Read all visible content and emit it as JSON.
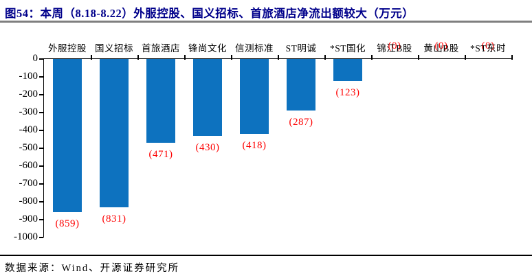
{
  "title": "图54：本周（8.18-8.22）外服控股、国义招标、首旅酒店净流出额较大（万元）",
  "source": "数据来源：Wind、开源证券研究所",
  "colors": {
    "title": "#00008b",
    "title_rule": "#7f7f7f",
    "bar": "#0d72bf",
    "value_label": "#fe0000",
    "axis": "#000000"
  },
  "chart_data": {
    "type": "bar",
    "title": "本周（8.18-8.22）外服控股、国义招标、首旅酒店净流出额较大（万元）",
    "categories": [
      "外服控股",
      "国义招标",
      "首旅酒店",
      "锋尚文化",
      "信测标准",
      "ST明诚",
      "*ST国化",
      "锦江B股",
      "黄山B股",
      "*ST东时"
    ],
    "values": [
      -859,
      -831,
      -471,
      -430,
      -418,
      -287,
      -123,
      0,
      0,
      0
    ],
    "data_labels": [
      "(859)",
      "(831)",
      "(471)",
      "(430)",
      "(418)",
      "(287)",
      "(123)",
      "(0)",
      "(0)",
      "(0)"
    ],
    "xlabel": "",
    "ylabel": "",
    "ylim": [
      -1000,
      0
    ],
    "yticks": [
      "0",
      "-100",
      "-200",
      "-300",
      "-400",
      "-500",
      "-600",
      "-700",
      "-800",
      "-900",
      "-1000"
    ],
    "grid": "off",
    "legend": "none",
    "category_axis_position": "top",
    "bar_color": "#0d72bf",
    "data_label_color": "#fe0000"
  }
}
